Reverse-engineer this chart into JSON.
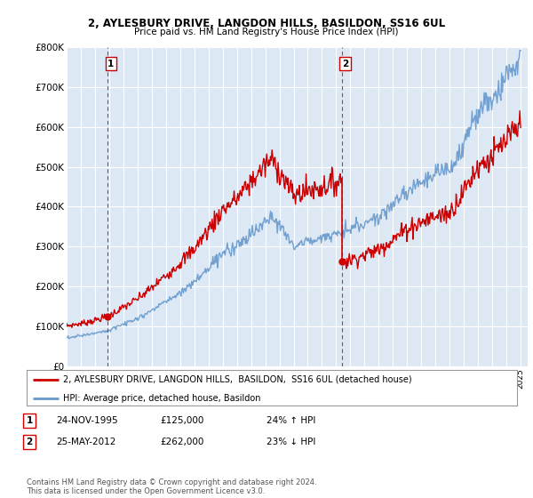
{
  "title1": "2, AYLESBURY DRIVE, LANGDON HILLS, BASILDON, SS16 6UL",
  "title2": "Price paid vs. HM Land Registry's House Price Index (HPI)",
  "ylim": [
    0,
    800000
  ],
  "yticks": [
    0,
    100000,
    200000,
    300000,
    400000,
    500000,
    600000,
    700000,
    800000
  ],
  "ytick_labels": [
    "£0",
    "£100K",
    "£200K",
    "£300K",
    "£400K",
    "£500K",
    "£600K",
    "£700K",
    "£800K"
  ],
  "background_color": "#ffffff",
  "plot_bg_color": "#dde8f5",
  "grid_color": "#ffffff",
  "hpi_color": "#6699cc",
  "price_color": "#cc0000",
  "vline_color": "#cc0000",
  "point1_year": 1995.9,
  "point1_value": 125000,
  "point2_year": 2012.4,
  "point2_value": 262000,
  "legend_label1": "2, AYLESBURY DRIVE, LANGDON HILLS,  BASILDON,  SS16 6UL (detached house)",
  "legend_label2": "HPI: Average price, detached house, Basildon",
  "footnote": "Contains HM Land Registry data © Crown copyright and database right 2024.\nThis data is licensed under the Open Government Licence v3.0.",
  "table_rows": [
    {
      "num": "1",
      "date": "24-NOV-1995",
      "price": "£125,000",
      "hpi": "24% ↑ HPI"
    },
    {
      "num": "2",
      "date": "25-MAY-2012",
      "price": "£262,000",
      "hpi": "23% ↓ HPI"
    }
  ]
}
